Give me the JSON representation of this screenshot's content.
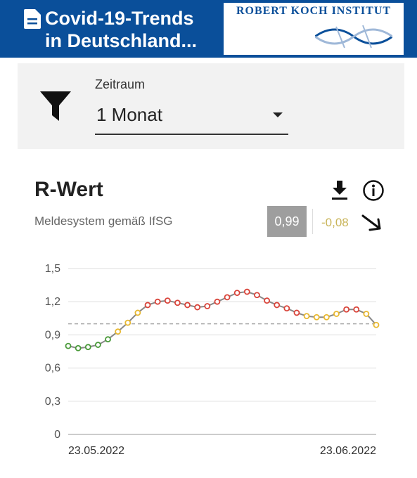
{
  "header": {
    "title_line1": "Covid-19-Trends",
    "title_line2": "in Deutschland...",
    "logo_text": "ROBERT KOCH INSTITUT",
    "background": "#0a4f9a"
  },
  "filter": {
    "label": "Zeitraum",
    "value": "1 Monat",
    "icon": "filter-icon"
  },
  "card": {
    "title": "R-Wert",
    "subtitle": "Meldesystem gemäß IfSG",
    "current_value": "0,99",
    "change": "-0,08",
    "trend_icon": "arrow-down-right-icon",
    "icons": [
      "download-icon",
      "info-icon"
    ]
  },
  "chart_data": {
    "type": "line",
    "x_start_label": "23.05.2022",
    "x_end_label": "23.06.2022",
    "yticks": [
      "0",
      "0,3",
      "0,6",
      "0,9",
      "1,2",
      "1,5"
    ],
    "ylim": [
      0,
      1.5
    ],
    "reference_line": 1.0,
    "grid": true,
    "series": [
      {
        "values": [
          0.8,
          0.78,
          0.79,
          0.81,
          0.86,
          0.93,
          1.01,
          1.1,
          1.17,
          1.2,
          1.21,
          1.19,
          1.17,
          1.15,
          1.16,
          1.2,
          1.24,
          1.28,
          1.29,
          1.26,
          1.21,
          1.17,
          1.14,
          1.1,
          1.07,
          1.06,
          1.06,
          1.09,
          1.13,
          1.13,
          1.09,
          0.99
        ],
        "point_colors": [
          "#4a9a3a",
          "#4a9a3a",
          "#4a9a3a",
          "#4a9a3a",
          "#4a9a3a",
          "#e8b830",
          "#e8b830",
          "#e8b830",
          "#d9443a",
          "#d9443a",
          "#d9443a",
          "#d9443a",
          "#d9443a",
          "#d9443a",
          "#d9443a",
          "#d9443a",
          "#d9443a",
          "#d9443a",
          "#d9443a",
          "#d9443a",
          "#d9443a",
          "#d9443a",
          "#d9443a",
          "#d9443a",
          "#e8b830",
          "#e8b830",
          "#e8b830",
          "#e8b830",
          "#d9443a",
          "#d9443a",
          "#e8b830",
          "#e8b830"
        ]
      }
    ]
  }
}
